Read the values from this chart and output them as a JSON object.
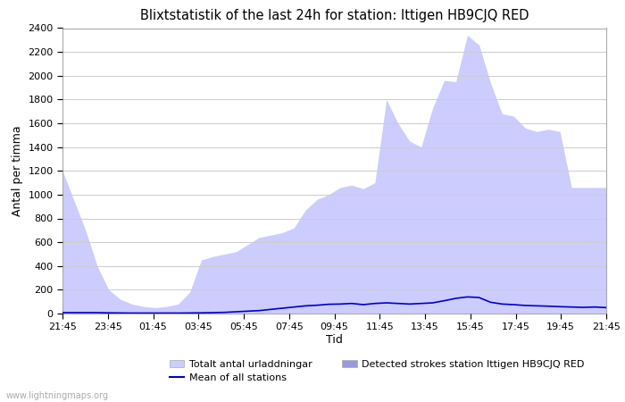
{
  "title": "Blixtstatistik of the last 24h for station: Ittigen HB9CJQ RED",
  "xlabel": "Tid",
  "ylabel": "Antal per timma",
  "xlim": [
    0,
    48
  ],
  "ylim": [
    0,
    2400
  ],
  "yticks": [
    0,
    200,
    400,
    600,
    800,
    1000,
    1200,
    1400,
    1600,
    1800,
    2000,
    2200,
    2400
  ],
  "xtick_labels": [
    "21:45",
    "23:45",
    "01:45",
    "03:45",
    "05:45",
    "07:45",
    "09:45",
    "11:45",
    "13:45",
    "15:45",
    "17:45",
    "19:45",
    "21:45"
  ],
  "xtick_positions": [
    0,
    4,
    8,
    12,
    16,
    20,
    24,
    28,
    32,
    36,
    40,
    44,
    48
  ],
  "watermark": "www.lightningmaps.org",
  "legend": {
    "totalt": "Totalt antal urladdningar",
    "detected": "Detected strokes station Ittigen HB9CJQ RED",
    "mean": "Mean of all stations"
  },
  "color_totalt": "#ccccff",
  "color_detected": "#9999dd",
  "color_mean": "#0000cc",
  "background_color": "#ffffff",
  "grid_color": "#cccccc",
  "totalt_data": [
    1200,
    950,
    700,
    400,
    200,
    120,
    80,
    60,
    50,
    60,
    80,
    180,
    450,
    480,
    500,
    520,
    580,
    640,
    660,
    680,
    720,
    870,
    960,
    1000,
    1060,
    1080,
    1050,
    1100,
    1800,
    1600,
    1450,
    1400,
    1730,
    1960,
    1950,
    2340,
    2260,
    1940,
    1680,
    1660,
    1560,
    1530,
    1550,
    1530,
    1060,
    1060,
    1060,
    1060
  ],
  "mean_data": [
    8,
    8,
    8,
    8,
    6,
    5,
    4,
    4,
    4,
    4,
    4,
    5,
    6,
    8,
    10,
    15,
    20,
    25,
    35,
    45,
    55,
    65,
    70,
    78,
    80,
    85,
    75,
    85,
    90,
    85,
    80,
    85,
    90,
    108,
    128,
    140,
    135,
    95,
    80,
    75,
    68,
    65,
    62,
    58,
    55,
    52,
    55,
    50
  ]
}
